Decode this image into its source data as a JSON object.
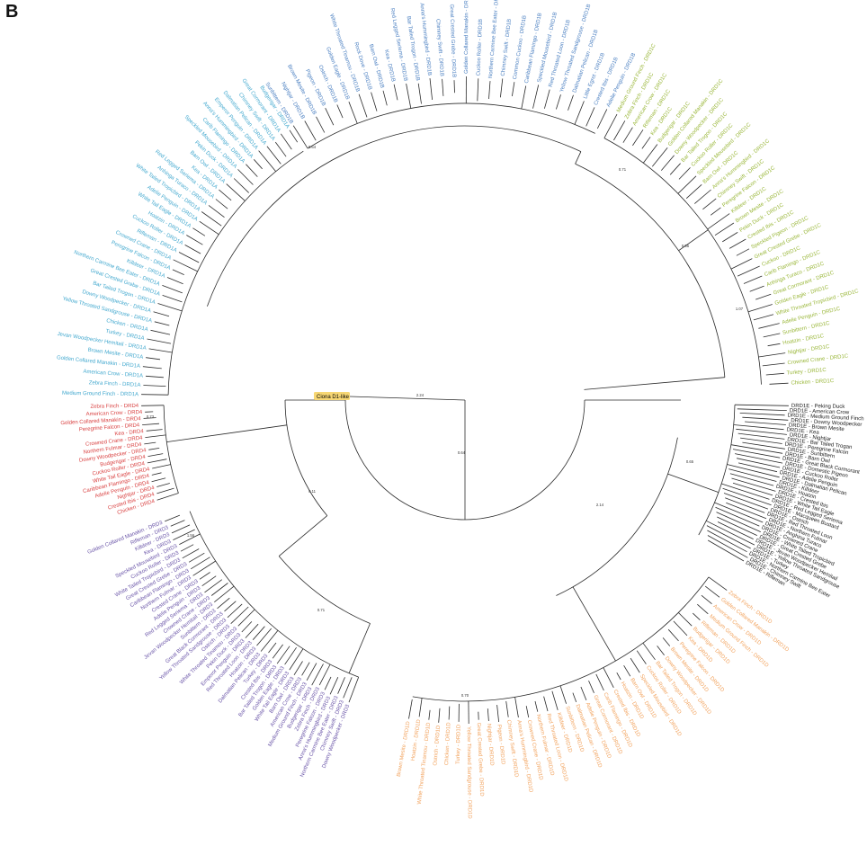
{
  "panel_label": "B",
  "root_label": "Ciona D1-like",
  "colors": {
    "DRD1A": "#44a9cf",
    "DRD1B": "#4a7fc1",
    "DRD1C": "#9ab73a",
    "DRD1E": "#1a1a1a",
    "DRD1D": "#f2a35e",
    "DRD3": "#6a55a8",
    "DRD4": "#d94141",
    "root_highlight": "#f7d774",
    "branches": "#2a2a2a"
  },
  "backbone_lengths": {
    "root_stem": "2.24",
    "upper_split": "0.64",
    "lower_split": "0.77",
    "d4_branch": "0.73",
    "d3_d4_split": "0.11",
    "d3_branch": "1.56",
    "d3_inner": "0.71",
    "d1c_branch": "1.07",
    "d1ab_split": "0.55",
    "d1c_stem": "0.71",
    "d1e_branch": "0.65",
    "d1d_branch": "0.70",
    "d1e_d1d_split": "2.14"
  },
  "clades": [
    {
      "id": "DRD1A",
      "suffix": "DRD1A",
      "taxa": [
        "Medium Ground Finch",
        "Zebra Finch",
        "American Crow",
        "Golden Collared Manakin",
        "Brown Mesite",
        "Jevan Woodpecker Hemitail",
        "Turkey",
        "Chicken",
        "Yellow Throated Sandgrouse",
        "Downy Woodpecker",
        "Bar Tailed Trogon",
        "Great Crested Grebe",
        "Northern Carmine Bee Eater",
        "Killdeer",
        "Peregrine Falcon",
        "Crowned Crane",
        "Rifleman",
        "Cuckoo Roller",
        "Hoatzin",
        "White Tail Eagle",
        "Adelie Penguin",
        "White Tailed Tropicbird",
        "Anhinga Turaco",
        "Red Legged Seriema",
        "Kea",
        "Barn Owl",
        "Pekin Duck",
        "Speckled Mousebird",
        "Carib Flamingo",
        "Anna's Hummingbird",
        "Emperor Penguin",
        "Dalmatian Pelican",
        "Chimney Swift",
        "Great Cormorant",
        "Budgerigar"
      ]
    },
    {
      "id": "DRD1B",
      "suffix": "DRD1B",
      "taxa": [
        "Sunbittern",
        "Nightjar",
        "Brown Mesite",
        "Pigeon",
        "Ostrich",
        "Golden Eagle",
        "White Throated Tinamou",
        "Rock Dove",
        "Barn Owl",
        "Kea",
        "Red Legged Seriema",
        "Bar Tailed Trogon",
        "Anna's Hummingbird",
        "Chimney Swift",
        "Great Crested Grebe",
        "Golden Collared Manakin",
        "Cuckoo Roller",
        "Northern Carmine Bee Eater",
        "Chimney Swift",
        "Common Cuckoo",
        "Caribbean Flamingo",
        "Speckled Mousebird",
        "Red Throated Loon",
        "Yellow Throated Sandgrouse",
        "Dalmatian Pelican",
        "Little Egret",
        "Crested Ibis",
        "Adelie Penguin"
      ]
    },
    {
      "id": "DRD1C",
      "suffix": "DRD1C",
      "taxa": [
        "Medium Ground Finch",
        "Zebra Finch",
        "American Crow",
        "Rifleman",
        "Kea",
        "Budgerigar",
        "Golden Collared Manakin",
        "Downy Woodpecker",
        "Bar Tailed Trogon",
        "Cuckoo Roller",
        "Speckled Mousebird",
        "Barn Owl",
        "Anna's Hummingbird",
        "Chimney Swift",
        "Peregrine Falcon",
        "Killdeer",
        "Brown Mesite",
        "Pekin Duck",
        "Crested Ibis",
        "Speckled Pigeon",
        "Great Crested Grebe",
        "Cuckoo",
        "Carib Flamingo",
        "Anhinga Turaco",
        "Great Cormorant",
        "Golden Eagle",
        "White Throated Tropicbird",
        "Adelie Penguin",
        "Sunbittern",
        "Hoatzin",
        "Nightjar",
        "Crowned Crane",
        "Turkey",
        "Chicken"
      ]
    },
    {
      "id": "DRD1E",
      "suffix": "",
      "taxa": [
        "DRD1E - Peking Duck",
        "DRD1E - American Crow",
        "DRD1E - Medium Ground Finch",
        "DRD1E - Downy Woodpecker",
        "DRD1E - Brown Mesite",
        "DRD1E - Kea",
        "DRD1E - Nightjar",
        "DRD1E - Bar Tailed Trogan",
        "DRD1E - Peregrine Falcon",
        "DRD1E - Sunbittern",
        "DRD1E - Barn Owl",
        "DRD1E - Great Black Cormorant",
        "DRD1E - Domestic Pigeon",
        "DRD1E - Cuckoo Roller",
        "DRD1E - Adelie Penguin",
        "DRD1E - Dalmatian Pelican",
        "DRD1E - Killdeer",
        "DRD1E - Hoatzin",
        "DRD1E - Crested Ibis",
        "DRD1E - White Tail Eagle",
        "DRD1E - Red Legged Seriema",
        "DRD1E - Macqueen Bustard",
        "DRD1E - Ostrich",
        "DRD1E - Red Throated Loon",
        "DRD1E - Northern Fulmar",
        "DRD1E - Anghina Turaco",
        "DRD1E - Crowned Crane",
        "DRD1E - White Tailed Tropicbird",
        "DRD1E - Great Crested Grebe",
        "DRD1E - Jevan Woodpecker Hemitail",
        "DRD1E - Yellow Throated Sandgrouse",
        "DRD1E - Turkey",
        "DRD1E - Northern Carmine Bee Eater",
        "DRD1E - Chimney Swift",
        "DRD1E - Rifleman"
      ]
    },
    {
      "id": "DRD1D",
      "suffix": "DRD1D",
      "taxa": [
        "Zebra Finch",
        "Golden Collared Manakin",
        "American Crow",
        "Medium Ground Finch",
        "Rifleman",
        "Budgerigar",
        "Kea",
        "Peregrine Falcon",
        "Brown Mesite",
        "Downy Woodpecker",
        "Bar Tailed Trogon",
        "Cuckoo Roller",
        "Speckled Mousebird",
        "Barn Owl",
        "Hoatzin",
        "Crested Ibis",
        "Carib Flamingo",
        "Great Cormorant",
        "Adelie Penguin",
        "Dalmatian Pelican",
        "Sunbittern",
        "Killdeer",
        "Red Throated Loon",
        "Northern Fulmar",
        "Crowned Crane",
        "Anna's Hummingbird",
        "Chimney Swift",
        "Pigeon",
        "Nightjar",
        "Great Crested Grebe",
        "Yellow Throated Sandgrouse",
        "Turkey",
        "Chicken",
        "Ostrich",
        "White Throated Tinamou",
        "Hoatzin",
        "Brown Mesite"
      ]
    },
    {
      "id": "DRD3",
      "suffix": "DRD3",
      "taxa": [
        "Downy Woodpecker",
        "Chimney Swift",
        "Northern Carmine Bee Eater",
        "Anna's Hummingbird",
        "Peregrine Falcon",
        "Zebra Finch",
        "Budgerigar",
        "Medium Ground Finch",
        "American Crow",
        "Barn Owl",
        "White Tail Eagle",
        "Golden Eagle",
        "Bar Tailed Trogon",
        "Crested Ibis",
        "Turkey",
        "Dalmatian Pelican",
        "Hoatzin",
        "Red Throated Loon",
        "Emperor Penguin",
        "Pekin Duck",
        "White Throated Tinamou",
        "Ostrich",
        "Yellow Throated Sandgrouse",
        "Great Black Cormorant",
        "Sunbittern",
        "Jevan Woodpecker Hemitail",
        "Crowned Crane",
        "Red Legged Seriema",
        "Adelie Penguin",
        "Crested Crane",
        "Northern Fulmar",
        "Caribbean Flamingo",
        "Great Crested Grebe",
        "White Tailed Tropicbird",
        "Cuckoo Roller",
        "Speckled Mousebird",
        "Kea",
        "Killdeer",
        "Rifleman",
        "Golden Collared Manakin"
      ]
    },
    {
      "id": "DRD4",
      "suffix": "DRD4",
      "taxa": [
        "Chicken",
        "Crested Ibis",
        "Nightjar",
        "Adelie Penguin",
        "Caribbean Flamingo",
        "White Tail Eagle",
        "Cuckoo Roller",
        "Budgerigar",
        "Downy Woodpecker",
        "Northern Fulmar",
        "Crowned Crane",
        "Kea",
        "Peregrine Falcon",
        "Golden Collared Manakin",
        "American Crow",
        "Zebra Finch"
      ]
    }
  ]
}
